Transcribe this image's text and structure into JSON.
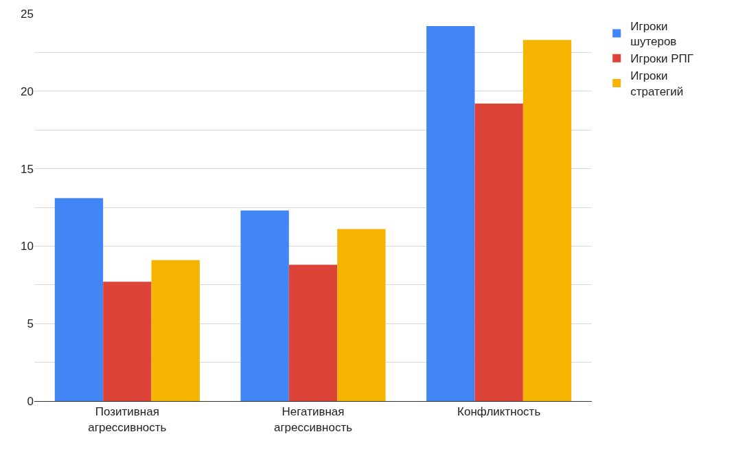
{
  "chart_data": {
    "type": "bar",
    "categories": [
      "Позитивная агрессивность",
      "Негативная агрессивность",
      "Конфликтность"
    ],
    "series": [
      {
        "name": "Игроки шутеров",
        "color": "#4285f4",
        "values": [
          13.1,
          12.3,
          24.2
        ]
      },
      {
        "name": "Игроки РПГ",
        "color": "#db4437",
        "values": [
          7.7,
          8.8,
          19.2
        ]
      },
      {
        "name": "Игроки стратегий",
        "color": "#f4b400",
        "values": [
          9.1,
          11.1,
          23.3
        ]
      }
    ],
    "ylim": [
      0,
      25
    ],
    "yticks": [
      0,
      {
        "value": 2.5,
        "label": null
      },
      5,
      {
        "value": 7.5,
        "label": null
      },
      10,
      {
        "value": 12.5,
        "label": null
      },
      15,
      {
        "value": 17.5,
        "label": null
      },
      20,
      {
        "value": 22.5,
        "label": null
      },
      25
    ],
    "grid": "y",
    "legend": "top right"
  }
}
